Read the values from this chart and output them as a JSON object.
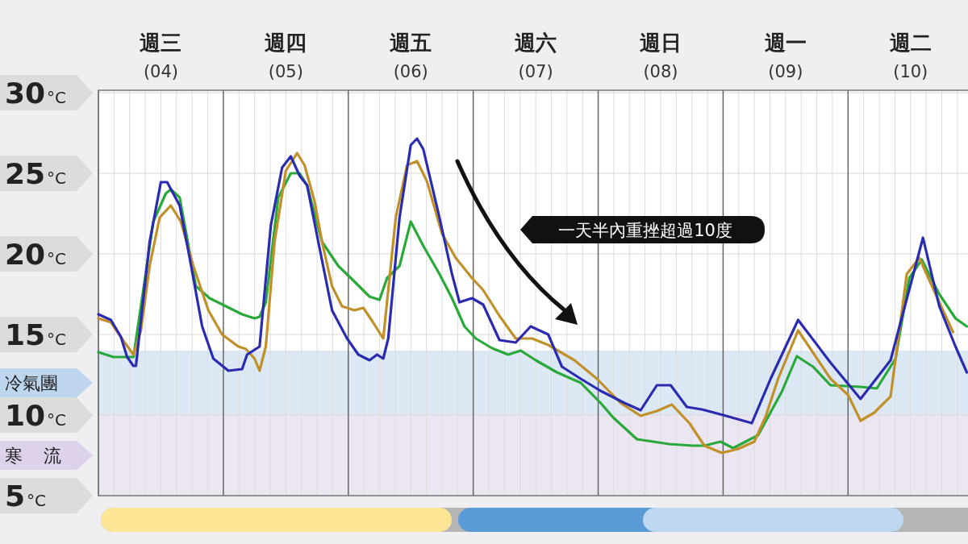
{
  "chart_data": {
    "type": "line",
    "xlim": [
      3.5,
      10.46
    ],
    "ylim": [
      5,
      30
    ],
    "xticks": [
      {
        "value": 3.5,
        "label": null
      },
      {
        "value": 4,
        "label": "週三 (04)"
      },
      {
        "value": 4.5,
        "label": null
      },
      {
        "value": 5,
        "label": "週四 (05)"
      },
      {
        "value": 5.5,
        "label": null
      },
      {
        "value": 6,
        "label": "週五 (06)"
      },
      {
        "value": 6.5,
        "label": null
      },
      {
        "value": 7,
        "label": "週六 (07)"
      },
      {
        "value": 7.5,
        "label": null
      },
      {
        "value": 8,
        "label": "週日 (08)"
      },
      {
        "value": 8.5,
        "label": null
      },
      {
        "value": 9,
        "label": "週一 (09)"
      },
      {
        "value": 9.5,
        "label": null
      },
      {
        "value": 10,
        "label": "週二 (10)"
      }
    ],
    "yticks": [
      {
        "value": 5,
        "label": "5°C"
      },
      {
        "value": 10,
        "label": "10°C"
      },
      {
        "value": 15,
        "label": "15°C"
      },
      {
        "value": 20,
        "label": "20°C"
      },
      {
        "value": 25,
        "label": "25°C"
      },
      {
        "value": 30,
        "label": "30°C"
      }
    ],
    "grid": true,
    "marker": "none",
    "line_style": "solid",
    "bands": [
      {
        "axis": "y",
        "from": 10,
        "to": 14,
        "label": "冷氣團",
        "color": "#dce9f5"
      },
      {
        "axis": "y",
        "from": 5,
        "to": 10,
        "label": "寒流",
        "color": "#ece5f2"
      }
    ],
    "annotations": [
      "一天半內重挫超過10度"
    ],
    "series": [
      {
        "color": "#2aa83a",
        "x": [
          3.5,
          3.62,
          3.78,
          3.94,
          4.04,
          4.08,
          4.15,
          4.28,
          4.39,
          4.52,
          4.65,
          4.75,
          4.79,
          4.84,
          4.94,
          5.04,
          5.11,
          5.17,
          5.29,
          5.42,
          5.54,
          5.67,
          5.75,
          5.81,
          5.91,
          6.0,
          6.1,
          6.23,
          6.33,
          6.43,
          6.52,
          6.65,
          6.78,
          6.88,
          7.0,
          7.17,
          7.36,
          7.52,
          7.62,
          7.81,
          8.07,
          8.26,
          8.35,
          8.48,
          8.58,
          8.78,
          8.97,
          9.09,
          9.22,
          9.36,
          9.6,
          9.73,
          9.88,
          9.99,
          10.09,
          10.23,
          10.36,
          10.45
        ],
        "values": [
          13.9,
          13.6,
          13.6,
          22.0,
          23.75,
          24.0,
          23.5,
          18.0,
          17.25,
          16.75,
          16.25,
          16.0,
          16.1,
          17.0,
          23.5,
          25.0,
          25.0,
          24.25,
          20.75,
          19.25,
          18.35,
          17.35,
          17.15,
          18.5,
          19.25,
          22.0,
          20.5,
          18.75,
          17.25,
          15.5,
          14.75,
          14.15,
          13.75,
          14.0,
          13.4,
          12.65,
          12.0,
          10.75,
          9.85,
          8.5,
          8.2,
          8.1,
          8.1,
          8.35,
          7.95,
          8.75,
          11.45,
          13.65,
          13.0,
          11.85,
          11.75,
          11.65,
          13.5,
          18.5,
          19.65,
          17.5,
          16.0,
          15.5
        ]
      },
      {
        "color": "#c0902a",
        "x": [
          3.5,
          3.6,
          3.71,
          3.78,
          3.84,
          3.91,
          3.99,
          4.08,
          4.16,
          4.26,
          4.38,
          4.49,
          4.62,
          4.68,
          4.75,
          4.79,
          4.84,
          4.91,
          5.0,
          5.09,
          5.15,
          5.23,
          5.29,
          5.37,
          5.45,
          5.55,
          5.62,
          5.69,
          5.78,
          5.88,
          5.97,
          6.05,
          6.13,
          6.25,
          6.36,
          6.49,
          6.58,
          6.71,
          6.84,
          6.97,
          7.1,
          7.31,
          7.49,
          7.68,
          7.84,
          7.97,
          8.09,
          8.23,
          8.35,
          8.49,
          8.62,
          8.75,
          8.84,
          8.94,
          9.1,
          9.36,
          9.5,
          9.6,
          9.71,
          9.84,
          9.97,
          10.07,
          10.23,
          10.34
        ],
        "values": [
          16.0,
          15.75,
          14.5,
          13.75,
          15.25,
          19.25,
          22.25,
          23.0,
          22.0,
          19.25,
          16.5,
          15.0,
          14.25,
          14.1,
          13.5,
          12.75,
          14.25,
          20.75,
          25.15,
          26.25,
          25.5,
          23.25,
          20.75,
          18.0,
          16.75,
          16.5,
          16.65,
          15.85,
          14.75,
          22.25,
          25.5,
          25.75,
          24.5,
          21.25,
          19.75,
          18.5,
          17.75,
          16.15,
          14.75,
          14.75,
          14.35,
          13.4,
          12.25,
          10.75,
          9.95,
          10.25,
          10.65,
          9.5,
          8.1,
          7.65,
          7.9,
          8.35,
          9.9,
          12.25,
          15.25,
          12.25,
          11.25,
          9.65,
          10.15,
          11.15,
          18.75,
          19.75,
          17.0,
          15.15
        ]
      },
      {
        "color": "#2b2bb0",
        "x": [
          3.5,
          3.6,
          3.68,
          3.73,
          3.78,
          3.8,
          3.91,
          4.0,
          4.05,
          4.15,
          4.23,
          4.33,
          4.42,
          4.54,
          4.65,
          4.69,
          4.79,
          4.88,
          4.97,
          5.04,
          5.11,
          5.17,
          5.26,
          5.37,
          5.49,
          5.58,
          5.67,
          5.73,
          5.78,
          5.82,
          5.91,
          6.0,
          6.05,
          6.1,
          6.23,
          6.33,
          6.39,
          6.49,
          6.58,
          6.71,
          6.84,
          6.96,
          7.1,
          7.21,
          7.36,
          7.52,
          7.71,
          7.84,
          7.97,
          8.08,
          8.21,
          8.33,
          8.5,
          8.73,
          8.88,
          9.1,
          9.36,
          9.6,
          9.84,
          10.1,
          10.23,
          10.36,
          10.45
        ],
        "values": [
          16.25,
          15.9,
          14.85,
          13.6,
          13.05,
          13.05,
          20.75,
          24.45,
          24.45,
          23.0,
          19.75,
          15.5,
          13.5,
          12.75,
          12.85,
          13.75,
          14.25,
          21.75,
          25.35,
          26.05,
          24.85,
          24.25,
          20.75,
          16.5,
          14.75,
          13.75,
          13.4,
          13.75,
          13.5,
          14.75,
          22.25,
          26.75,
          27.15,
          26.5,
          22.25,
          18.75,
          17.0,
          17.25,
          16.85,
          14.65,
          14.5,
          15.5,
          15.0,
          13.0,
          12.25,
          11.5,
          10.75,
          10.3,
          11.85,
          11.85,
          10.5,
          10.35,
          10.0,
          9.5,
          12.25,
          15.9,
          13.25,
          11.0,
          13.4,
          21.0,
          16.75,
          14.25,
          12.65
        ]
      }
    ]
  }
}
